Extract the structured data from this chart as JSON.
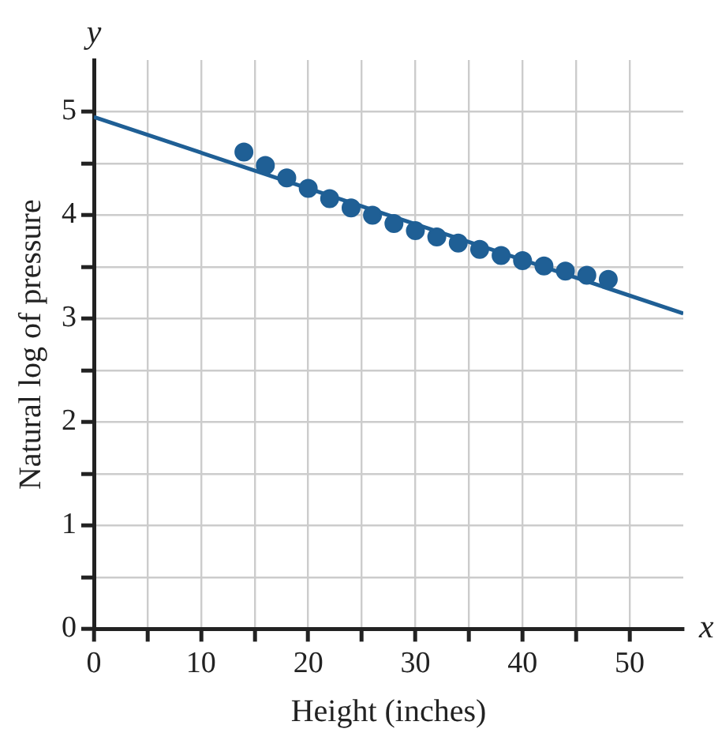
{
  "chart_data": {
    "type": "scatter",
    "xlabel": "Height (inches)",
    "ylabel": "Natural log of pressure",
    "annotations": [
      "y",
      "x"
    ],
    "xlim": [
      0,
      55
    ],
    "ylim": [
      0,
      5.5
    ],
    "xticks": [
      0,
      {
        "value": 5,
        "label": null
      },
      10,
      {
        "value": 15,
        "label": null
      },
      20,
      {
        "value": 25,
        "label": null
      },
      30,
      {
        "value": 35,
        "label": null
      },
      40,
      {
        "value": 45,
        "label": null
      },
      50
    ],
    "yticks": [
      0,
      {
        "value": 0.5,
        "label": null
      },
      1,
      {
        "value": 1.5,
        "label": null
      },
      2,
      {
        "value": 2.5,
        "label": null
      },
      3,
      {
        "value": 3.5,
        "label": null
      },
      4,
      {
        "value": 4.5,
        "label": null
      },
      5
    ],
    "grid": true,
    "series": [
      {
        "marker": "circle",
        "color": "#1f5f95",
        "x": [
          14,
          16,
          18,
          20,
          22,
          24,
          26,
          28,
          30,
          32,
          34,
          36,
          38,
          40,
          42,
          44,
          46,
          48
        ],
        "values": [
          4.61,
          4.48,
          4.36,
          4.26,
          4.16,
          4.07,
          4.0,
          3.92,
          3.85,
          3.79,
          3.73,
          3.67,
          3.61,
          3.56,
          3.51,
          3.46,
          3.42,
          3.38
        ]
      },
      {
        "type": "line",
        "marker": "none",
        "color": "#1f5f95",
        "x": [
          0,
          55
        ],
        "values": [
          4.95,
          3.05
        ]
      }
    ]
  }
}
